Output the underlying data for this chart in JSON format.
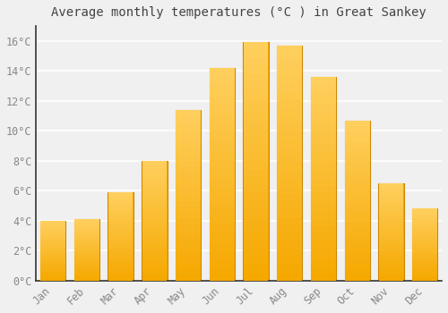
{
  "title": "Average monthly temperatures (°C ) in Great Sankey",
  "months": [
    "Jan",
    "Feb",
    "Mar",
    "Apr",
    "May",
    "Jun",
    "Jul",
    "Aug",
    "Sep",
    "Oct",
    "Nov",
    "Dec"
  ],
  "temperatures": [
    4.0,
    4.1,
    5.9,
    8.0,
    11.4,
    14.2,
    15.9,
    15.7,
    13.6,
    10.7,
    6.5,
    4.8
  ],
  "bar_color_bottom": "#F5A800",
  "bar_color_top": "#FFD060",
  "bar_color_edge": "#CC8800",
  "background_color": "#F0F0F0",
  "grid_color": "#FFFFFF",
  "tick_label_color": "#888888",
  "title_color": "#444444",
  "ylim": [
    0,
    17
  ],
  "yticks": [
    0,
    2,
    4,
    6,
    8,
    10,
    12,
    14,
    16
  ],
  "ytick_labels": [
    "0°C",
    "2°C",
    "4°C",
    "6°C",
    "8°C",
    "10°C",
    "12°C",
    "14°C",
    "16°C"
  ],
  "bar_width": 0.75,
  "figsize": [
    5.0,
    3.5
  ],
  "dpi": 100
}
